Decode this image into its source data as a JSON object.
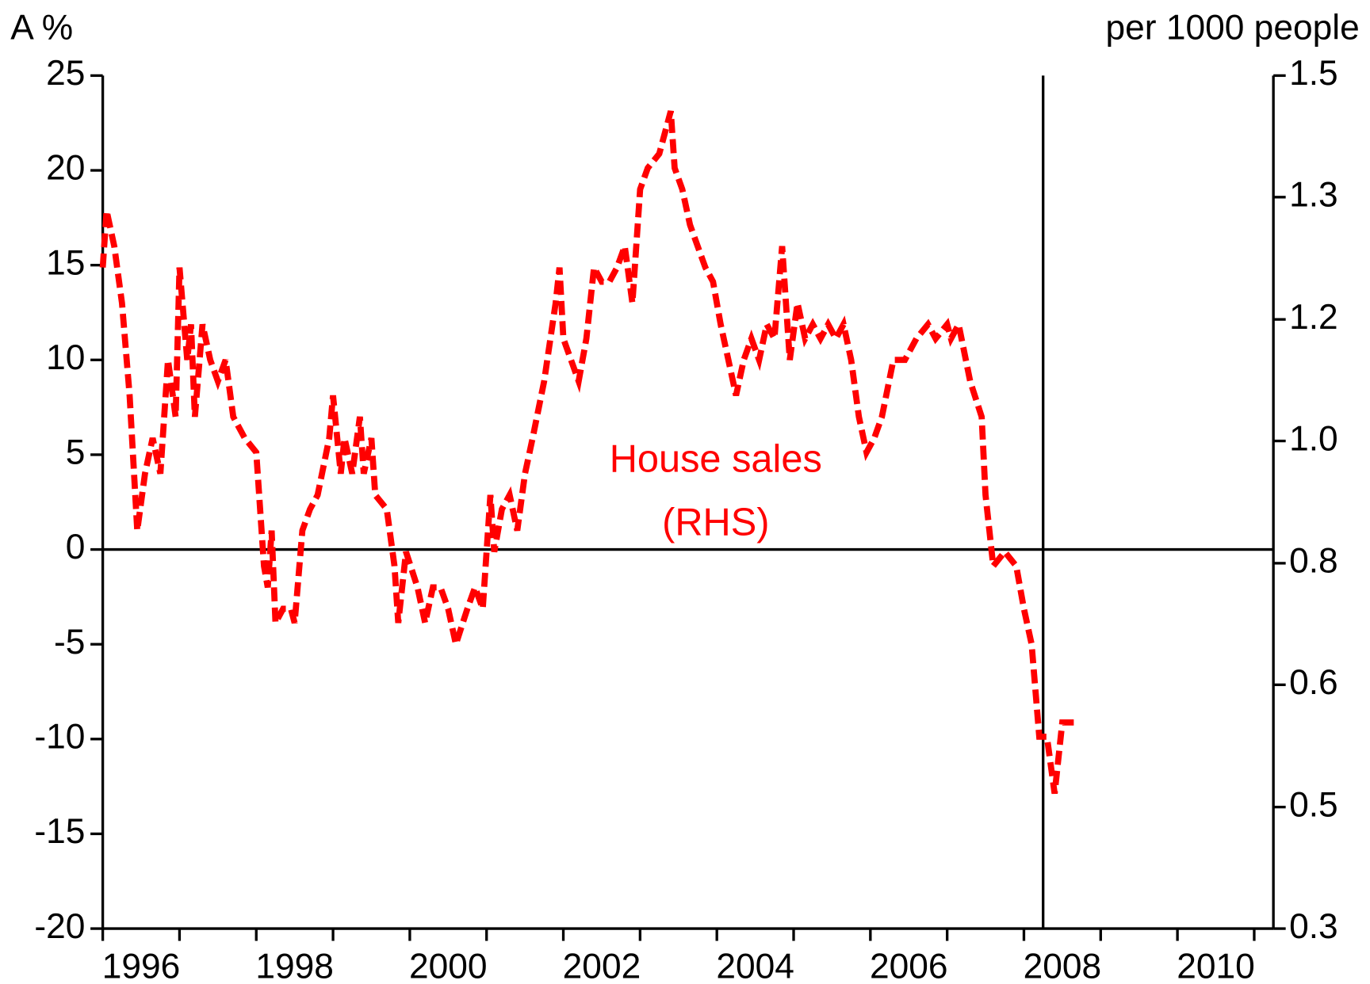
{
  "chart_data": {
    "type": "line",
    "y_label": "A %",
    "y2_label": "per 1000 people",
    "annotation": "(RHS)",
    "xlim": [
      1996,
      2011.25
    ],
    "xticks": [
      {
        "value": 1996.5,
        "label": "1996"
      },
      {
        "value": 1998.5,
        "label": "1998"
      },
      {
        "value": 2000.5,
        "label": "2000"
      },
      {
        "value": 2002.5,
        "label": "2002"
      },
      {
        "value": 2004.5,
        "label": "2004"
      },
      {
        "value": 2006.5,
        "label": "2006"
      },
      {
        "value": 2008.5,
        "label": "2008"
      },
      {
        "value": 2010.5,
        "label": "2010"
      }
    ],
    "xminor_ticks": [
      1996,
      1997,
      1998,
      1999,
      2000,
      2001,
      2002,
      2003,
      2004,
      2005,
      2006,
      2007,
      2008,
      2009,
      2010,
      2011
    ],
    "vline": 2008.25,
    "ylim": [
      -20,
      25
    ],
    "yticks": [
      25,
      20,
      15,
      10,
      5,
      0,
      -5,
      -10,
      -15,
      -20
    ],
    "y2lim": [
      0.3,
      1.5
    ],
    "y2ticks": [
      {
        "value": 1.5,
        "label": "1.5"
      },
      {
        "value": 1.329,
        "label": "1.3"
      },
      {
        "value": 1.157,
        "label": "1.2"
      },
      {
        "value": 0.986,
        "label": "1.0"
      },
      {
        "value": 0.814,
        "label": "0.8"
      },
      {
        "value": 0.643,
        "label": "0.6"
      },
      {
        "value": 0.471,
        "label": "0.5"
      },
      {
        "value": 0.3,
        "label": "0.3"
      }
    ],
    "x": [
      1996.0,
      1996.05,
      1996.15,
      1996.25,
      1996.35,
      1996.45,
      1996.55,
      1996.65,
      1996.75,
      1996.85,
      1996.95,
      1997.0,
      1997.1,
      1997.15,
      1997.2,
      1997.3,
      1997.4,
      1997.5,
      1997.6,
      1997.7,
      1997.85,
      1998.0,
      1998.1,
      1998.15,
      1998.2,
      1998.25,
      1998.35,
      1998.45,
      1998.5,
      1998.6,
      1998.7,
      1998.8,
      1998.95,
      1999.0,
      1999.1,
      1999.15,
      1999.25,
      1999.35,
      1999.4,
      1999.5,
      1999.55,
      1999.7,
      1999.8,
      1999.85,
      1999.95,
      2000.1,
      2000.2,
      2000.3,
      2000.4,
      2000.5,
      2000.6,
      2000.75,
      2000.85,
      2000.95,
      2001.05,
      2001.1,
      2001.2,
      2001.3,
      2001.4,
      2001.5,
      2001.6,
      2001.75,
      2001.9,
      2001.95,
      2002.0,
      2002.1,
      2002.2,
      2002.3,
      2002.4,
      2002.5,
      2002.6,
      2002.7,
      2002.8,
      2002.9,
      2003.0,
      2003.1,
      2003.25,
      2003.4,
      2003.45,
      2003.55,
      2003.65,
      2003.75,
      2003.85,
      2003.95,
      2004.05,
      2004.15,
      2004.25,
      2004.35,
      2004.45,
      2004.55,
      2004.65,
      2004.75,
      2004.85,
      2004.95,
      2005.05,
      2005.15,
      2005.25,
      2005.35,
      2005.45,
      2005.55,
      2005.65,
      2005.75,
      2005.85,
      2005.95,
      2006.05,
      2006.15,
      2006.3,
      2006.45,
      2006.6,
      2006.75,
      2006.85,
      2007.0,
      2007.05,
      2007.15,
      2007.3,
      2007.45,
      2007.5,
      2007.6,
      2007.75,
      2007.9,
      2008.0,
      2008.1,
      2008.2,
      2008.3,
      2008.4,
      2008.5,
      2008.65
    ],
    "series": [
      {
        "name": "House sales",
        "color": "#ff0000",
        "axis": "y2",
        "values": [
          1.23,
          1.31,
          1.26,
          1.18,
          1.05,
          0.86,
          0.94,
          0.99,
          0.94,
          1.1,
          1.02,
          1.23,
          1.1,
          1.15,
          1.02,
          1.15,
          1.1,
          1.07,
          1.1,
          1.02,
          0.99,
          0.97,
          0.81,
          0.78,
          0.86,
          0.73,
          0.75,
          0.75,
          0.73,
          0.86,
          0.89,
          0.91,
          0.99,
          1.05,
          0.94,
          0.99,
          0.94,
          1.02,
          0.94,
          0.99,
          0.91,
          0.89,
          0.81,
          0.73,
          0.83,
          0.78,
          0.73,
          0.78,
          0.78,
          0.75,
          0.7,
          0.75,
          0.78,
          0.75,
          0.91,
          0.83,
          0.89,
          0.91,
          0.86,
          0.94,
          0.99,
          1.07,
          1.18,
          1.23,
          1.13,
          1.1,
          1.07,
          1.13,
          1.23,
          1.21,
          1.21,
          1.23,
          1.26,
          1.18,
          1.34,
          1.37,
          1.39,
          1.45,
          1.37,
          1.34,
          1.29,
          1.26,
          1.23,
          1.21,
          1.15,
          1.1,
          1.05,
          1.1,
          1.13,
          1.1,
          1.15,
          1.13,
          1.26,
          1.1,
          1.18,
          1.13,
          1.15,
          1.13,
          1.15,
          1.13,
          1.15,
          1.1,
          1.02,
          0.97,
          0.99,
          1.02,
          1.1,
          1.1,
          1.13,
          1.15,
          1.13,
          1.15,
          1.13,
          1.15,
          1.07,
          1.02,
          0.91,
          0.81,
          0.83,
          0.81,
          0.75,
          0.7,
          0.57,
          0.57,
          0.49,
          0.59,
          0.59
        ]
      }
    ]
  }
}
